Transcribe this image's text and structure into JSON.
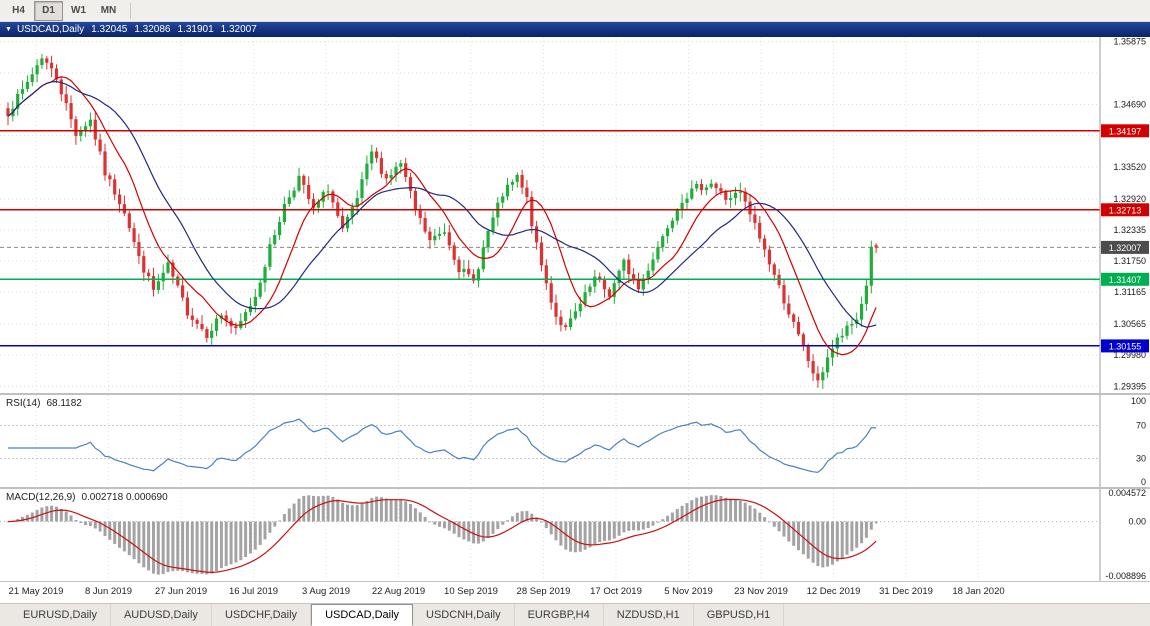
{
  "toolbar": {
    "buttons": [
      {
        "label": "H4",
        "active": false
      },
      {
        "label": "D1",
        "active": true
      },
      {
        "label": "W1",
        "active": false
      },
      {
        "label": "MN",
        "active": false
      }
    ]
  },
  "titlebar": {
    "symbol_label": "USDCAD,Daily",
    "open": "1.32045",
    "high": "1.32086",
    "low": "1.31901",
    "close": "1.32007"
  },
  "chart_data": {
    "type": "candlestick",
    "symbol": "USDCAD",
    "timeframe": "Daily",
    "bars_count": 180,
    "grid_color": "#dedede",
    "candle_colors": {
      "up": "#1fae3a",
      "down": "#dc3232"
    },
    "price_axis": {
      "view_max": 1.3596,
      "view_min": 1.2927,
      "grid_prices": [
        1.35875,
        1.3528,
        1.3469,
        1.34105,
        1.3352,
        1.3292,
        1.32335,
        1.3175,
        1.31165,
        1.30565,
        1.2998,
        1.29395
      ],
      "labels": [
        {
          "text": "1.35875",
          "price": 1.35875
        },
        {
          "text": "1.34690",
          "price": 1.3469
        },
        {
          "text": "1.33520",
          "price": 1.3352
        },
        {
          "text": "1.32920",
          "price": 1.3292
        },
        {
          "text": "1.32335",
          "price": 1.32335
        },
        {
          "text": "1.31750",
          "price": 1.3175
        },
        {
          "text": "1.31165",
          "price": 1.31165
        },
        {
          "text": "1.30565",
          "price": 1.30565
        },
        {
          "text": "1.29980",
          "price": 1.2998
        },
        {
          "text": "1.29395",
          "price": 1.29395
        }
      ]
    },
    "date_axis": {
      "labels": [
        "21 May 2019",
        "8 Jun 2019",
        "27 Jun 2019",
        "16 Jul 2019",
        "3 Aug 2019",
        "22 Aug 2019",
        "10 Sep 2019",
        "28 Sep 2019",
        "17 Oct 2019",
        "5 Nov 2019",
        "23 Nov 2019",
        "12 Dec 2019",
        "31 Dec 2019",
        "18 Jan 2020"
      ]
    },
    "close_path_anchors": [
      [
        0,
        1.3455
      ],
      [
        3,
        1.3495
      ],
      [
        7,
        1.356
      ],
      [
        10,
        1.352
      ],
      [
        14,
        1.3415
      ],
      [
        17,
        1.344
      ],
      [
        20,
        1.334
      ],
      [
        24,
        1.327
      ],
      [
        27,
        1.318
      ],
      [
        30,
        1.312
      ],
      [
        33,
        1.3165
      ],
      [
        37,
        1.308
      ],
      [
        41,
        1.3038
      ],
      [
        44,
        1.3075
      ],
      [
        47,
        1.3042
      ],
      [
        51,
        1.311
      ],
      [
        54,
        1.32
      ],
      [
        57,
        1.328
      ],
      [
        60,
        1.3332
      ],
      [
        63,
        1.327
      ],
      [
        66,
        1.3312
      ],
      [
        69,
        1.323
      ],
      [
        72,
        1.3292
      ],
      [
        75,
        1.338
      ],
      [
        78,
        1.333
      ],
      [
        81,
        1.3358
      ],
      [
        84,
        1.327
      ],
      [
        87,
        1.3212
      ],
      [
        90,
        1.3232
      ],
      [
        93,
        1.3162
      ],
      [
        96,
        1.3136
      ],
      [
        99,
        1.323
      ],
      [
        102,
        1.33
      ],
      [
        105,
        1.3332
      ],
      [
        107,
        1.329
      ],
      [
        109,
        1.3202
      ],
      [
        111,
        1.3132
      ],
      [
        113,
        1.3072
      ],
      [
        115,
        1.3046
      ],
      [
        118,
        1.3092
      ],
      [
        121,
        1.3142
      ],
      [
        124,
        1.3112
      ],
      [
        127,
        1.3172
      ],
      [
        130,
        1.3122
      ],
      [
        133,
        1.3182
      ],
      [
        136,
        1.3242
      ],
      [
        139,
        1.3292
      ],
      [
        142,
        1.3312
      ],
      [
        145,
        1.3322
      ],
      [
        148,
        1.3292
      ],
      [
        151,
        1.3302
      ],
      [
        154,
        1.3242
      ],
      [
        157,
        1.3172
      ],
      [
        160,
        1.3102
      ],
      [
        163,
        1.3032
      ],
      [
        165,
        1.2988
      ],
      [
        167,
        1.2944
      ],
      [
        169,
        1.2996
      ],
      [
        171,
        1.3026
      ],
      [
        173,
        1.3046
      ],
      [
        175,
        1.3066
      ],
      [
        177,
        1.3128
      ],
      [
        178,
        1.3205
      ],
      [
        179,
        1.32007
      ]
    ],
    "last_bar": {
      "o": 1.32045,
      "h": 1.32086,
      "l": 1.31901,
      "c": 1.32007
    },
    "horizontal_lines": [
      {
        "price": 1.34197,
        "label": "1.34197",
        "color": "#d40000"
      },
      {
        "price": 1.32713,
        "label": "1.32713",
        "color": "#d40000"
      },
      {
        "price": 1.31407,
        "label": "1.31407",
        "color": "#00b050"
      },
      {
        "price": 1.30155,
        "label": "1.30155",
        "color": "#0000d2"
      }
    ],
    "current_price": {
      "value": 1.32007,
      "label": "1.32007",
      "tag_color": "#4d4d4d",
      "line_color": "#8a8a8a"
    },
    "moving_averages": [
      {
        "period": 10,
        "color": "#d40000"
      },
      {
        "period": 21,
        "color": "#1f2a80"
      }
    ],
    "rsi": {
      "label": "RSI(14)",
      "value_label": "68.1182",
      "period": 14,
      "line_color": "#4a80c4",
      "level_lines": [
        70,
        30
      ],
      "axis_labels": [
        {
          "text": "100",
          "value": 100
        },
        {
          "text": "70",
          "value": 70
        },
        {
          "text": "30",
          "value": 30
        },
        {
          "text": "0",
          "value": 0
        }
      ]
    },
    "macd": {
      "label": "MACD(12,26,9)",
      "value_label": "0.002718 0.000690",
      "fast": 12,
      "slow": 26,
      "signal": 9,
      "hist_color": "#a3a3a3",
      "signal_color": "#cc1111",
      "axis_max": 0.004572,
      "axis_min": -0.008896,
      "axis_labels": [
        {
          "text": "0.004572",
          "value": 0.004572
        },
        {
          "text": "0.00",
          "value": 0
        },
        {
          "text": "-0.008896",
          "value": -0.008896
        }
      ]
    }
  },
  "tabs": {
    "items": [
      {
        "label": "EURUSD,Daily",
        "active": false
      },
      {
        "label": "AUDUSD,Daily",
        "active": false
      },
      {
        "label": "USDCHF,Daily",
        "active": false
      },
      {
        "label": "USDCAD,Daily",
        "active": true
      },
      {
        "label": "USDCNH,Daily",
        "active": false
      },
      {
        "label": "EURGBP,H4",
        "active": false
      },
      {
        "label": "NZDUSD,H1",
        "active": false
      },
      {
        "label": "GBPUSD,H1",
        "active": false
      }
    ]
  }
}
